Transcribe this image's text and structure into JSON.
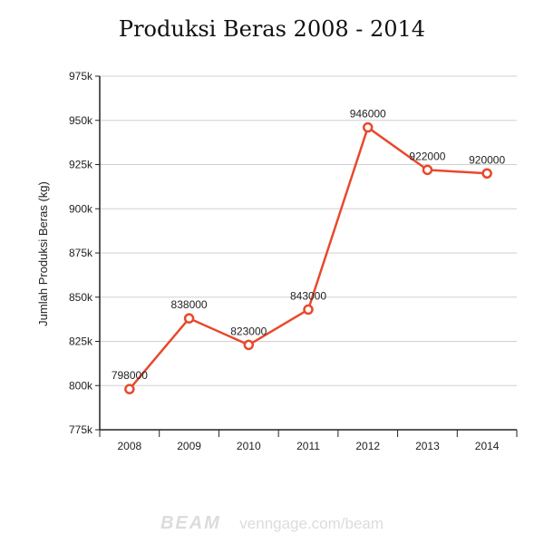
{
  "chart_data": {
    "type": "line",
    "title": "Produksi Beras 2008 - 2014",
    "xlabel": "",
    "ylabel": "Jumlah Produksi Beras (kg)",
    "categories": [
      "2008",
      "2009",
      "2010",
      "2011",
      "2012",
      "2013",
      "2014"
    ],
    "values": [
      798000,
      838000,
      823000,
      843000,
      946000,
      922000,
      920000
    ],
    "data_labels": [
      "798000",
      "838000",
      "823000",
      "843000",
      "946000",
      "922000",
      "920000"
    ],
    "ylim": [
      775000,
      975000
    ],
    "yticks": [
      775000,
      800000,
      825000,
      850000,
      875000,
      900000,
      925000,
      950000,
      975000
    ],
    "ytick_labels": [
      "775k",
      "800k",
      "825k",
      "850k",
      "875k",
      "900k",
      "925k",
      "950k",
      "975k"
    ],
    "grid": true,
    "legend": "none",
    "line_color": "#e8492d"
  },
  "footer": {
    "brand": "BEAM",
    "site": "venngage.com/beam"
  }
}
